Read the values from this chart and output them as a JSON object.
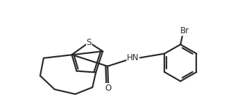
{
  "background_color": "#ffffff",
  "line_color": "#2a2a2a",
  "line_width": 1.6,
  "text_color": "#2a2a2a",
  "figsize": [
    3.36,
    1.56
  ],
  "dpi": 100,
  "label_S": "S",
  "label_O": "O",
  "label_HN": "HN",
  "label_Br": "Br"
}
